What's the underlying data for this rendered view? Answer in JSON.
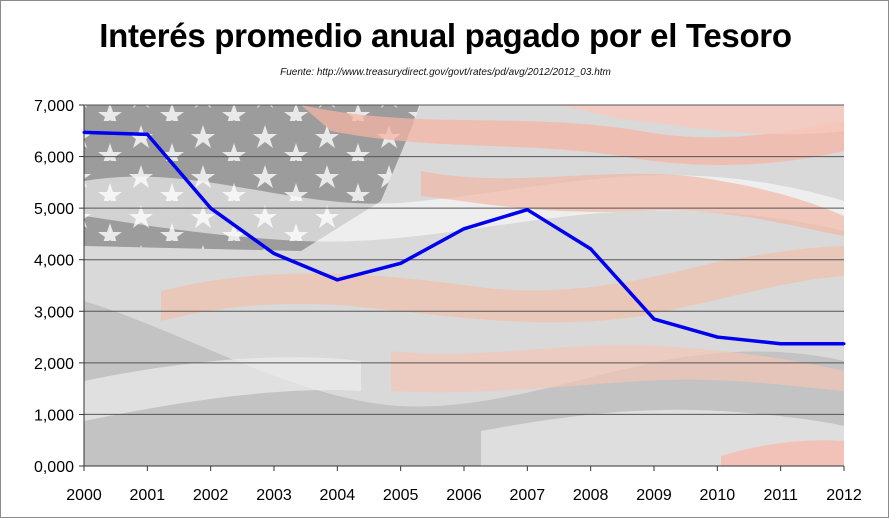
{
  "chart_data": {
    "type": "line",
    "title": "Interés promedio anual pagado por el Tesoro",
    "subtitle": "Fuente: http://www.treasurydirect.gov/govt/rates/pd/avg/2012/2012_03.htm",
    "xlabel": "",
    "ylabel": "",
    "x": [
      "2000",
      "2001",
      "2002",
      "2003",
      "2004",
      "2005",
      "2006",
      "2007",
      "2008",
      "2009",
      "2010",
      "2011",
      "2012"
    ],
    "series": [
      {
        "name": "Interés promedio",
        "values": [
          6.47,
          6.43,
          5.0,
          4.12,
          3.61,
          3.93,
          4.6,
          4.97,
          4.21,
          2.85,
          2.5,
          2.37,
          2.37
        ],
        "color": "#0000ee"
      }
    ],
    "ylim": [
      0,
      7
    ],
    "y_ticks": [
      0,
      1,
      2,
      3,
      4,
      5,
      6,
      7
    ],
    "y_tick_labels": [
      "0,000",
      "1,000",
      "2,000",
      "3,000",
      "4,000",
      "5,000",
      "6,000",
      "7,000"
    ],
    "grid": true,
    "legend": "none",
    "background": "faded american flag"
  }
}
